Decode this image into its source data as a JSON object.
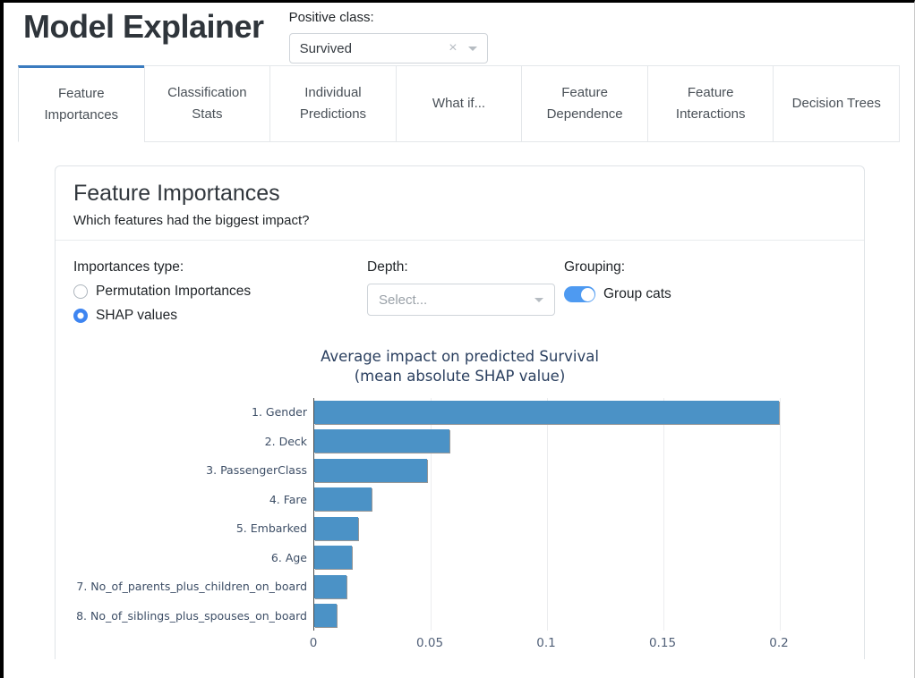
{
  "header": {
    "title": "Model Explainer",
    "positive_class_label": "Positive class:",
    "positive_class_value": "Survived"
  },
  "icons": {
    "clear_icon": "×"
  },
  "tabs": [
    {
      "label": "Feature Importances",
      "active": true
    },
    {
      "label": "Classification Stats",
      "active": false
    },
    {
      "label": "Individual Predictions",
      "active": false
    },
    {
      "label": "What if...",
      "active": false
    },
    {
      "label": "Feature Dependence",
      "active": false
    },
    {
      "label": "Feature Interactions",
      "active": false
    },
    {
      "label": "Decision Trees",
      "active": false
    }
  ],
  "card": {
    "title": "Feature Importances",
    "subtitle": "Which features had the biggest impact?",
    "controls": {
      "importances_type_label": "Importances type:",
      "radio_options": [
        {
          "label": "Permutation Importances",
          "selected": false
        },
        {
          "label": "SHAP values",
          "selected": true
        }
      ],
      "depth_label": "Depth:",
      "depth_placeholder": "Select...",
      "grouping_label": "Grouping:",
      "group_cats_label": "Group cats",
      "group_cats_on": true
    }
  },
  "chart_data": {
    "type": "bar",
    "orientation": "horizontal",
    "title": "Average impact on predicted Survival",
    "subtitle": "(mean absolute SHAP value)",
    "categories": [
      "1. Gender",
      "2. Deck",
      "3. PassengerClass",
      "4. Fare",
      "5. Embarked",
      "6. Age",
      "7. No_of_parents_plus_children_on_board",
      "8. No_of_siblings_plus_spouses_on_board"
    ],
    "values": [
      0.1995,
      0.058,
      0.0485,
      0.0247,
      0.019,
      0.016,
      0.0138,
      0.0096
    ],
    "xlabel": "",
    "ylabel": "",
    "xlim": [
      0,
      0.212
    ],
    "xticks": [
      {
        "value": 0,
        "label": "0"
      },
      {
        "value": 0.05,
        "label": "0.05"
      },
      {
        "value": 0.1,
        "label": "0.1"
      },
      {
        "value": 0.15,
        "label": "0.15"
      },
      {
        "value": 0.2,
        "label": "0.2"
      }
    ],
    "grid": true,
    "legend": false,
    "bar_color": "#4b92c6"
  },
  "colors": {
    "accent_blue": "#3a7bbf",
    "toggle_blue": "#4e9af1",
    "radio_blue": "#3e85f1",
    "bar_blue": "#4b92c6"
  }
}
